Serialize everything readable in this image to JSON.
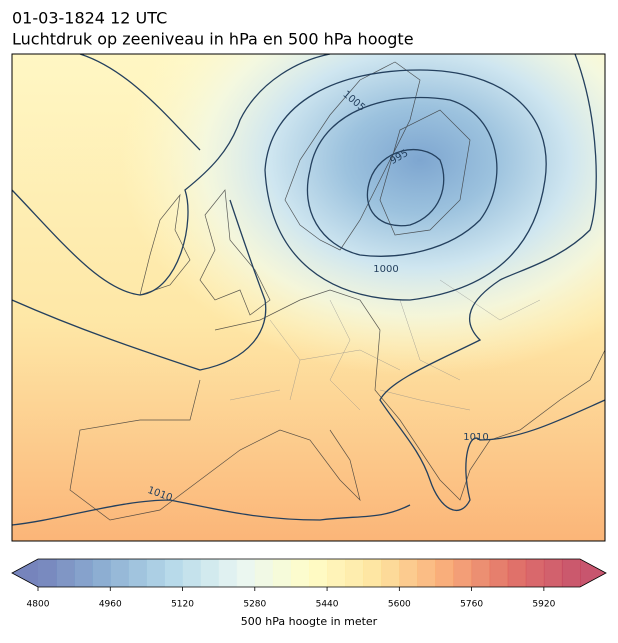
{
  "header": {
    "title": "01-03-1824 12 UTC",
    "subtitle": "Luchtdruk op zeeniveau in hPa en 500 hPa hoogte"
  },
  "map": {
    "contour_labels": [
      "1005",
      "995",
      "1000",
      "1010",
      "1010"
    ]
  },
  "colorbar": {
    "label": "500 hPa hoogte in meter",
    "lim": [
      4800,
      6000
    ],
    "ticks": [
      4800,
      4960,
      5120,
      5280,
      5440,
      5600,
      5760,
      5920
    ]
  }
}
